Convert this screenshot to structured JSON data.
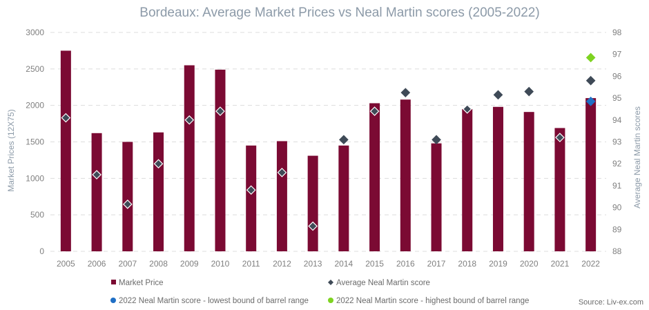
{
  "chart_data": {
    "type": "bar",
    "title": "Bordeaux: Average Market Prices vs Neal Martin scores (2005-2022)",
    "categories": [
      "2005",
      "2006",
      "2007",
      "2008",
      "2009",
      "2010",
      "2011",
      "2012",
      "2013",
      "2014",
      "2015",
      "2016",
      "2017",
      "2018",
      "2019",
      "2020",
      "2021",
      "2022"
    ],
    "ylabel_left": "Market Prices (12X75)",
    "ylabel_right": "Average Neal Martin scores",
    "ylim_left": [
      0,
      3000
    ],
    "ylim_right": [
      88,
      98
    ],
    "yticks_left": [
      "0",
      "500",
      "1000",
      "1500",
      "2000",
      "2500",
      "3000"
    ],
    "yticks_right": [
      "88",
      "89",
      "90",
      "91",
      "92",
      "93",
      "94",
      "95",
      "96",
      "97",
      "98"
    ],
    "grid": true,
    "legend_position": "bottom",
    "series": [
      {
        "name": "Market Price",
        "kind": "bar",
        "axis": "left",
        "color": "#7b0a33",
        "values": [
          2750,
          1620,
          1500,
          1630,
          2550,
          2490,
          1450,
          1510,
          1310,
          1450,
          2030,
          2080,
          1480,
          1950,
          1980,
          1910,
          1690,
          2100
        ]
      },
      {
        "name": "Average Neal Martin score",
        "kind": "marker",
        "axis": "right",
        "color": "#3f4a57",
        "values": [
          94.1,
          91.5,
          90.15,
          92.0,
          94.0,
          94.4,
          90.8,
          91.6,
          89.15,
          93.1,
          94.4,
          95.25,
          93.1,
          94.5,
          95.15,
          95.3,
          93.2,
          95.8
        ]
      },
      {
        "name": "2022 Neal Martin score - lowest bound of barrel range",
        "kind": "marker",
        "axis": "right",
        "color": "#1f6fc5",
        "points": [
          {
            "x": "2022",
            "y": 94.85
          }
        ]
      },
      {
        "name": "2022 Neal Martin score - highest bound of barrel range",
        "kind": "marker",
        "axis": "right",
        "color": "#7ed321",
        "points": [
          {
            "x": "2022",
            "y": 96.85
          }
        ]
      }
    ],
    "source": "Source: Liv-ex.com"
  }
}
